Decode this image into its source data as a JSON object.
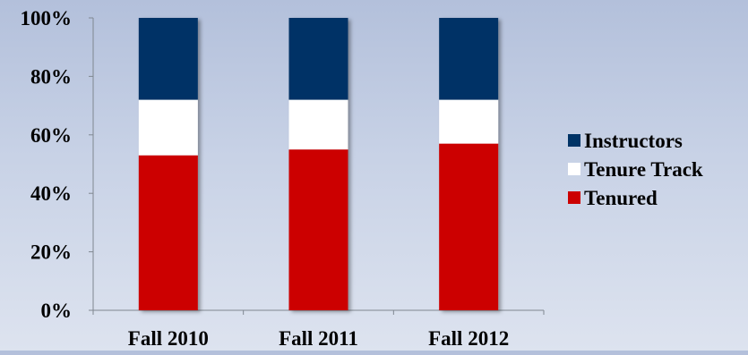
{
  "chart_data": {
    "type": "bar",
    "stacked": true,
    "categories": [
      "Fall 2010",
      "Fall 2011",
      "Fall 2012"
    ],
    "series": [
      {
        "name": "Tenured",
        "values": [
          53,
          55,
          57
        ],
        "color": "#cc0000"
      },
      {
        "name": "Tenure Track",
        "values": [
          19,
          17,
          15
        ],
        "color": "#ffffff"
      },
      {
        "name": "Instructors",
        "values": [
          28,
          28,
          28
        ],
        "color": "#003366"
      }
    ],
    "yticks": [
      "0%",
      "20%",
      "40%",
      "60%",
      "80%",
      "100%"
    ],
    "ylim": [
      0,
      100
    ],
    "grid": false,
    "legend_position": "right",
    "legend_order": [
      "Instructors",
      "Tenure Track",
      "Tenured"
    ]
  }
}
